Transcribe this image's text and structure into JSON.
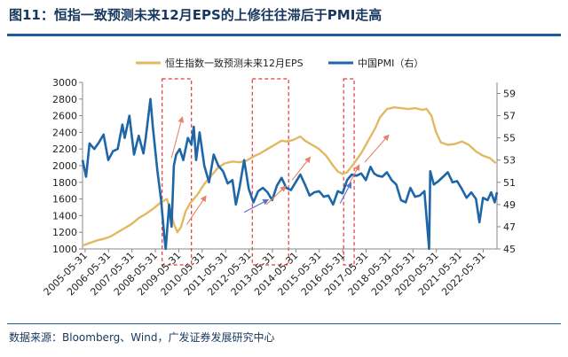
{
  "header": {
    "title": "图11：恒指一致预测未来12月EPS的上修往往滞后于PMI走高"
  },
  "footer": {
    "source": "数据来源：Bloomberg、Wind，广发证券发展研究中心"
  },
  "colors": {
    "eps": "#e2b962",
    "pmi": "#1f66a8",
    "highlight": "#e03a3a",
    "arrow_up": "#e8826a",
    "arrow_down": "#5b6fd1",
    "rule": "#1f5aa6"
  },
  "chart_data": {
    "type": "line",
    "legend_position": "top",
    "grid": false,
    "x_ticks": [
      "2005-05-31",
      "2006-05-31",
      "2007-05-31",
      "2008-05-31",
      "2009-05-31",
      "2010-05-31",
      "2011-05-31",
      "2012-05-31",
      "2013-05-31",
      "2014-05-31",
      "2015-05-31",
      "2016-05-31",
      "2017-05-31",
      "2018-05-31",
      "2019-05-31",
      "2020-05-31",
      "2021-05-31",
      "2022-05-31"
    ],
    "x_range": [
      2005.3,
      2023.0
    ],
    "left_axis": {
      "min": 1000,
      "max": 3000,
      "ticks": [
        "1000",
        "1200",
        "1400",
        "1600",
        "1800",
        "2000",
        "2200",
        "2400",
        "2600",
        "2800",
        "3000"
      ]
    },
    "right_axis": {
      "min": 45,
      "max": 60,
      "ticks": [
        "45",
        "47",
        "49",
        "51",
        "53",
        "55",
        "57",
        "59"
      ]
    },
    "series": [
      {
        "name": "恒生指数一致预测未来12月EPS",
        "axis": "left",
        "points": [
          [
            2005.3,
            1040
          ],
          [
            2005.6,
            1070
          ],
          [
            2005.9,
            1100
          ],
          [
            2006.2,
            1120
          ],
          [
            2006.5,
            1150
          ],
          [
            2006.8,
            1200
          ],
          [
            2007.1,
            1250
          ],
          [
            2007.4,
            1300
          ],
          [
            2007.7,
            1370
          ],
          [
            2008.0,
            1420
          ],
          [
            2008.3,
            1480
          ],
          [
            2008.6,
            1550
          ],
          [
            2008.9,
            1600
          ],
          [
            2009.0,
            1520
          ],
          [
            2009.2,
            1300
          ],
          [
            2009.35,
            1200
          ],
          [
            2009.5,
            1260
          ],
          [
            2009.7,
            1450
          ],
          [
            2009.9,
            1550
          ],
          [
            2010.2,
            1650
          ],
          [
            2010.5,
            1780
          ],
          [
            2010.8,
            1880
          ],
          [
            2011.1,
            1980
          ],
          [
            2011.4,
            2030
          ],
          [
            2011.7,
            2050
          ],
          [
            2012.0,
            2040
          ],
          [
            2012.3,
            2060
          ],
          [
            2012.6,
            2110
          ],
          [
            2012.9,
            2150
          ],
          [
            2013.2,
            2200
          ],
          [
            2013.5,
            2250
          ],
          [
            2013.8,
            2300
          ],
          [
            2014.0,
            2290
          ],
          [
            2014.3,
            2310
          ],
          [
            2014.6,
            2350
          ],
          [
            2014.8,
            2300
          ],
          [
            2015.1,
            2250
          ],
          [
            2015.4,
            2200
          ],
          [
            2015.7,
            2120
          ],
          [
            2016.0,
            2000
          ],
          [
            2016.2,
            1930
          ],
          [
            2016.4,
            1900
          ],
          [
            2016.6,
            1920
          ],
          [
            2016.9,
            2030
          ],
          [
            2017.2,
            2150
          ],
          [
            2017.5,
            2300
          ],
          [
            2017.8,
            2450
          ],
          [
            2018.0,
            2580
          ],
          [
            2018.3,
            2680
          ],
          [
            2018.6,
            2700
          ],
          [
            2018.9,
            2690
          ],
          [
            2019.2,
            2680
          ],
          [
            2019.5,
            2690
          ],
          [
            2019.8,
            2670
          ],
          [
            2020.0,
            2680
          ],
          [
            2020.2,
            2600
          ],
          [
            2020.4,
            2400
          ],
          [
            2020.6,
            2280
          ],
          [
            2020.9,
            2250
          ],
          [
            2021.2,
            2260
          ],
          [
            2021.5,
            2290
          ],
          [
            2021.8,
            2250
          ],
          [
            2022.1,
            2170
          ],
          [
            2022.4,
            2120
          ],
          [
            2022.7,
            2090
          ],
          [
            2022.95,
            2030
          ]
        ]
      },
      {
        "name": "中国PMI（右）",
        "axis": "right",
        "points": [
          [
            2005.3,
            53.0
          ],
          [
            2005.45,
            51.5
          ],
          [
            2005.6,
            54.5
          ],
          [
            2005.8,
            54.0
          ],
          [
            2006.0,
            54.6
          ],
          [
            2006.2,
            55.3
          ],
          [
            2006.4,
            53.0
          ],
          [
            2006.6,
            53.8
          ],
          [
            2006.8,
            54.0
          ],
          [
            2007.0,
            56.2
          ],
          [
            2007.1,
            55.0
          ],
          [
            2007.3,
            57.0
          ],
          [
            2007.5,
            53.5
          ],
          [
            2007.7,
            55.2
          ],
          [
            2007.9,
            53.6
          ],
          [
            2008.0,
            55.0
          ],
          [
            2008.2,
            58.5
          ],
          [
            2008.3,
            56.0
          ],
          [
            2008.5,
            52.0
          ],
          [
            2008.65,
            49.5
          ],
          [
            2008.8,
            46.0
          ],
          [
            2008.85,
            45.0
          ],
          [
            2009.0,
            49.0
          ],
          [
            2009.1,
            47.0
          ],
          [
            2009.2,
            52.5
          ],
          [
            2009.3,
            53.5
          ],
          [
            2009.45,
            54.0
          ],
          [
            2009.6,
            53.0
          ],
          [
            2009.8,
            55.0
          ],
          [
            2009.95,
            54.4
          ],
          [
            2010.05,
            56.0
          ],
          [
            2010.15,
            53.0
          ],
          [
            2010.3,
            55.5
          ],
          [
            2010.5,
            52.5
          ],
          [
            2010.7,
            51.0
          ],
          [
            2010.9,
            53.5
          ],
          [
            2011.1,
            52.5
          ],
          [
            2011.3,
            52.0
          ],
          [
            2011.5,
            50.9
          ],
          [
            2011.7,
            51.2
          ],
          [
            2011.85,
            49.0
          ],
          [
            2012.0,
            50.5
          ],
          [
            2012.2,
            53.0
          ],
          [
            2012.4,
            50.4
          ],
          [
            2012.6,
            49.2
          ],
          [
            2012.8,
            50.2
          ],
          [
            2013.0,
            50.5
          ],
          [
            2013.2,
            50.1
          ],
          [
            2013.4,
            49.4
          ],
          [
            2013.6,
            50.7
          ],
          [
            2013.8,
            51.4
          ],
          [
            2014.0,
            50.5
          ],
          [
            2014.2,
            50.3
          ],
          [
            2014.4,
            51.0
          ],
          [
            2014.6,
            51.7
          ],
          [
            2014.8,
            50.8
          ],
          [
            2015.0,
            49.8
          ],
          [
            2015.2,
            50.1
          ],
          [
            2015.4,
            50.2
          ],
          [
            2015.6,
            49.7
          ],
          [
            2015.8,
            49.8
          ],
          [
            2016.0,
            49.0
          ],
          [
            2016.2,
            50.2
          ],
          [
            2016.4,
            50.0
          ],
          [
            2016.6,
            51.2
          ],
          [
            2016.8,
            51.7
          ],
          [
            2017.0,
            51.6
          ],
          [
            2017.2,
            51.8
          ],
          [
            2017.4,
            51.2
          ],
          [
            2017.6,
            52.4
          ],
          [
            2017.75,
            51.8
          ],
          [
            2017.9,
            51.6
          ],
          [
            2018.1,
            51.5
          ],
          [
            2018.3,
            51.9
          ],
          [
            2018.5,
            51.2
          ],
          [
            2018.7,
            50.8
          ],
          [
            2018.9,
            49.4
          ],
          [
            2019.1,
            49.2
          ],
          [
            2019.3,
            50.5
          ],
          [
            2019.5,
            49.7
          ],
          [
            2019.7,
            49.8
          ],
          [
            2019.9,
            50.2
          ],
          [
            2020.1,
            45.0
          ],
          [
            2020.15,
            52.0
          ],
          [
            2020.3,
            50.8
          ],
          [
            2020.5,
            51.1
          ],
          [
            2020.7,
            51.5
          ],
          [
            2020.9,
            51.9
          ],
          [
            2021.1,
            51.0
          ],
          [
            2021.3,
            51.1
          ],
          [
            2021.5,
            50.4
          ],
          [
            2021.7,
            49.6
          ],
          [
            2021.9,
            50.1
          ],
          [
            2022.1,
            49.5
          ],
          [
            2022.25,
            47.4
          ],
          [
            2022.4,
            49.6
          ],
          [
            2022.6,
            49.4
          ],
          [
            2022.75,
            50.1
          ],
          [
            2022.9,
            49.2
          ],
          [
            2023.0,
            50.1
          ]
        ]
      }
    ],
    "highlight_ranges": [
      [
        2008.7,
        2009.95
      ],
      [
        2012.55,
        2014.1
      ],
      [
        2016.45,
        2016.9
      ]
    ],
    "arrows": [
      {
        "direction": "up",
        "from": [
          2009.1,
          53.2
        ],
        "to": [
          2009.55,
          56.8
        ]
      },
      {
        "direction": "up",
        "from": [
          2009.75,
          47.2
        ],
        "to": [
          2010.55,
          49.7
        ]
      },
      {
        "direction": "up",
        "from": [
          2013.15,
          49.0
        ],
        "to": [
          2013.95,
          50.6
        ]
      },
      {
        "direction": "up",
        "from": [
          2014.25,
          51.2
        ],
        "to": [
          2015.0,
          53.2
        ]
      },
      {
        "direction": "up",
        "from": [
          2016.7,
          50.9
        ],
        "to": [
          2017.1,
          52.5
        ]
      },
      {
        "direction": "up",
        "from": [
          2017.35,
          52.8
        ],
        "to": [
          2018.35,
          55.2
        ]
      },
      {
        "direction": "down",
        "from": [
          2012.2,
          48.3
        ],
        "to": [
          2013.2,
          49.4
        ]
      },
      {
        "direction": "down",
        "from": [
          2016.3,
          49.1
        ],
        "to": [
          2016.75,
          50.9
        ]
      }
    ]
  }
}
